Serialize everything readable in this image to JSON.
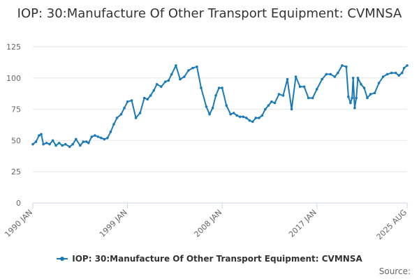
{
  "title": "IOP: 30:Manufacture Of Other Transport Equipment: CVMNSA",
  "credits": "Source:",
  "colors": {
    "series": "#1a7ab7"
  },
  "chart_data": {
    "type": "line",
    "title": "IOP: 30:Manufacture Of Other Transport Equipment: CVMNSA",
    "xlabel": "",
    "ylabel": "",
    "ylim": [
      0,
      125
    ],
    "yticks": [
      0,
      25,
      50,
      75,
      100,
      125
    ],
    "xlim": [
      1990.0,
      2025.583
    ],
    "xtick_labels": [
      {
        "x": 1990.0,
        "label": "1990 JAN"
      },
      {
        "x": 1999.0,
        "label": "1999 JAN"
      },
      {
        "x": 2008.0,
        "label": "2008 JAN"
      },
      {
        "x": 2017.0,
        "label": "2017 JAN"
      },
      {
        "x": 2025.583,
        "label": "2025 AUG"
      }
    ],
    "grid": true,
    "legend": "bottom-center",
    "series": [
      {
        "name": "IOP: 30:Manufacture Of Other Transport Equipment: CVMNSA",
        "x": [
          1990.0,
          1990.3,
          1990.6,
          1990.8,
          1991.0,
          1991.3,
          1991.6,
          1991.9,
          1992.2,
          1992.5,
          1992.8,
          1993.1,
          1993.5,
          1993.8,
          1994.1,
          1994.5,
          1994.8,
          1995.1,
          1995.3,
          1995.6,
          1995.9,
          1996.2,
          1996.5,
          1996.8,
          1997.1,
          1997.4,
          1997.7,
          1998.0,
          1998.4,
          1998.7,
          1999.0,
          1999.4,
          1999.8,
          2000.2,
          2000.6,
          2000.9,
          2001.2,
          2001.5,
          2001.8,
          2002.2,
          2002.6,
          2002.9,
          2003.2,
          2003.6,
          2004.0,
          2004.4,
          2004.8,
          2005.2,
          2005.6,
          2006.0,
          2006.5,
          2006.8,
          2007.1,
          2007.4,
          2007.7,
          2008.0,
          2008.4,
          2008.8,
          2009.1,
          2009.4,
          2009.7,
          2010.0,
          2010.3,
          2010.6,
          2010.9,
          2011.2,
          2011.5,
          2011.8,
          2012.1,
          2012.4,
          2012.7,
          2013.0,
          2013.4,
          2013.8,
          2014.2,
          2014.6,
          2015.0,
          2015.4,
          2015.8,
          2016.2,
          2016.6,
          2017.0,
          2017.5,
          2017.9,
          2018.3,
          2018.7,
          2019.0,
          2019.4,
          2019.8,
          2020.0,
          2020.2,
          2020.35,
          2020.45,
          2020.6,
          2020.75,
          2020.9,
          2021.2,
          2021.5,
          2021.8,
          2022.1,
          2022.5,
          2022.9,
          2023.3,
          2023.7,
          2024.1,
          2024.5,
          2024.8,
          2025.1,
          2025.3,
          2025.583
        ],
        "values": [
          47,
          49,
          54,
          55,
          47,
          48,
          47,
          50,
          46,
          48,
          46,
          47,
          45,
          47,
          51,
          46,
          49,
          49,
          48,
          53,
          54,
          53,
          52,
          51,
          52,
          57,
          63,
          68,
          71,
          76,
          81,
          82,
          68,
          72,
          84,
          83,
          86,
          90,
          95,
          93,
          97,
          98,
          103,
          110,
          99,
          101,
          106,
          108,
          109,
          92,
          77,
          71,
          76,
          86,
          92,
          92,
          78,
          71,
          72,
          70,
          69,
          69,
          68,
          66,
          65,
          68,
          68,
          70,
          75,
          78,
          81,
          80,
          87,
          86,
          99,
          75,
          101,
          93,
          93,
          84,
          84,
          91,
          99,
          103,
          103,
          101,
          104,
          110,
          109,
          85,
          80,
          84,
          100,
          76,
          84,
          100,
          95,
          92,
          84,
          87,
          88,
          96,
          101,
          103,
          104,
          104,
          102,
          104,
          108,
          110
        ]
      }
    ]
  }
}
